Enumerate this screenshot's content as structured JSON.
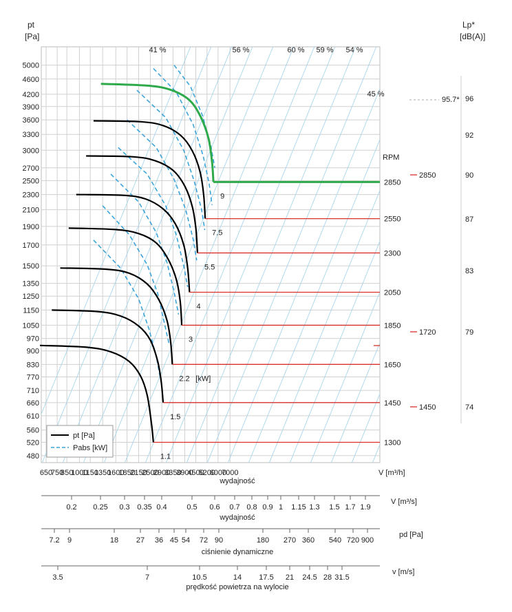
{
  "chart_data": {
    "type": "line",
    "y_axis": {
      "title_line1": "pt",
      "title_line2": "[Pa]",
      "ticks": [
        480,
        520,
        560,
        610,
        660,
        710,
        770,
        830,
        900,
        970,
        1050,
        1150,
        1250,
        1350,
        1500,
        1700,
        1900,
        2100,
        2300,
        2500,
        2700,
        3000,
        3300,
        3600,
        3900,
        4200,
        4600,
        5000
      ]
    },
    "x_axis": {
      "unit_label": "V [m³/h]",
      "title": "wydajność",
      "ticks": [
        650,
        750,
        850,
        1000,
        1150,
        1350,
        1600,
        1850,
        2150,
        2500,
        2900,
        3350,
        3900,
        4500,
        5200,
        6000,
        7000
      ]
    },
    "flow_axis": {
      "unit_label": "V  [m³/s]",
      "title": "wydajność",
      "ticks": [
        "0.2",
        "0.25",
        "0.3",
        "0.35",
        "0.4",
        "0.5",
        "0.6",
        "0.7",
        "0.8",
        "0.9",
        "1",
        "1.15",
        "1.3",
        "1.5",
        "1.7",
        "1.9"
      ]
    },
    "pd_axis": {
      "unit_label": "pd  [Pa]",
      "title": "ciśnienie dynamiczne",
      "ticks": [
        "7.2",
        "9",
        "18",
        "27",
        "36",
        "45",
        "54",
        "72",
        "90",
        "180",
        "270",
        "360",
        "540",
        "720",
        "900"
      ]
    },
    "v_axis": {
      "unit_label": "v  [m/s]",
      "title": "prędkość powietrza na wylocie",
      "ticks": [
        "3.5",
        "7",
        "10.5",
        "14",
        "17.5",
        "21",
        "24.5",
        "28",
        "31.5"
      ]
    },
    "lp_axis": {
      "title_line1": "Lp*",
      "title_line2": "[dB(A)]",
      "ticks": [
        74,
        79,
        83,
        87,
        90,
        92,
        96
      ]
    },
    "rpm_label": "RPM",
    "efficiency_labels": [
      "41 %",
      "56 %",
      "60 %",
      "59 %",
      "54 %",
      "45 %"
    ],
    "series": [
      {
        "rpm": "1300",
        "power": "1.1",
        "highlight": false,
        "points": [
          [
            600,
            930
          ],
          [
            1100,
            920
          ],
          [
            1500,
            895
          ],
          [
            1900,
            845
          ],
          [
            2200,
            775
          ],
          [
            2400,
            690
          ],
          [
            2540,
            580
          ],
          [
            2600,
            520
          ]
        ]
      },
      {
        "rpm": "1450",
        "power": "1.5",
        "highlight": false,
        "points": [
          [
            700,
            1150
          ],
          [
            1250,
            1140
          ],
          [
            1700,
            1110
          ],
          [
            2150,
            1045
          ],
          [
            2500,
            960
          ],
          [
            2750,
            845
          ],
          [
            2880,
            745
          ],
          [
            2950,
            660
          ]
        ]
      },
      {
        "rpm": "1650",
        "power": "2.2",
        "highlight": false,
        "points": [
          [
            780,
            1480
          ],
          [
            1400,
            1470
          ],
          [
            1900,
            1435
          ],
          [
            2400,
            1345
          ],
          [
            2800,
            1220
          ],
          [
            3100,
            1080
          ],
          [
            3250,
            950
          ],
          [
            3320,
            830
          ]
        ]
      },
      {
        "rpm": "1850",
        "power": "3",
        "highlight": false,
        "points": [
          [
            870,
            1880
          ],
          [
            1580,
            1865
          ],
          [
            2150,
            1820
          ],
          [
            2700,
            1720
          ],
          [
            3150,
            1560
          ],
          [
            3500,
            1380
          ],
          [
            3680,
            1210
          ],
          [
            3750,
            1050
          ]
        ]
      },
      {
        "rpm": "2050",
        "power": "4",
        "highlight": false,
        "points": [
          [
            960,
            2300
          ],
          [
            1750,
            2290
          ],
          [
            2350,
            2240
          ],
          [
            2950,
            2110
          ],
          [
            3450,
            1930
          ],
          [
            3850,
            1700
          ],
          [
            4050,
            1480
          ],
          [
            4150,
            1280
          ]
        ]
      },
      {
        "rpm": "2300",
        "power": "5.5",
        "highlight": false,
        "points": [
          [
            1090,
            2900
          ],
          [
            1980,
            2885
          ],
          [
            2650,
            2820
          ],
          [
            3350,
            2660
          ],
          [
            3900,
            2420
          ],
          [
            4300,
            2140
          ],
          [
            4500,
            1880
          ],
          [
            4600,
            1620
          ]
        ]
      },
      {
        "rpm": "2550",
        "power": "7.5",
        "highlight": false,
        "points": [
          [
            1200,
            3580
          ],
          [
            2200,
            3560
          ],
          [
            2950,
            3480
          ],
          [
            3700,
            3280
          ],
          [
            4300,
            2990
          ],
          [
            4750,
            2640
          ],
          [
            4980,
            2300
          ],
          [
            5080,
            1990
          ]
        ]
      },
      {
        "rpm": "2850",
        "power": "9",
        "highlight": true,
        "points": [
          [
            1320,
            4470
          ],
          [
            2450,
            4420
          ],
          [
            3300,
            4300
          ],
          [
            4150,
            4050
          ],
          [
            4800,
            3660
          ],
          [
            5300,
            3220
          ],
          [
            5550,
            2800
          ],
          [
            5650,
            2480
          ]
        ]
      }
    ],
    "pabs_curves": [
      [
        [
          1200,
          1750
        ],
        [
          1700,
          1480
        ],
        [
          2150,
          1230
        ],
        [
          2450,
          1030
        ],
        [
          2700,
          870
        ],
        [
          2850,
          760
        ]
      ],
      [
        [
          1350,
          2150
        ],
        [
          1900,
          1810
        ],
        [
          2400,
          1510
        ],
        [
          2750,
          1270
        ],
        [
          3000,
          1060
        ],
        [
          3200,
          930
        ]
      ],
      [
        [
          1500,
          2600
        ],
        [
          2150,
          2200
        ],
        [
          2700,
          1830
        ],
        [
          3100,
          1530
        ],
        [
          3400,
          1280
        ],
        [
          3600,
          1120
        ]
      ],
      [
        [
          1650,
          3050
        ],
        [
          2400,
          2600
        ],
        [
          3050,
          2150
        ],
        [
          3500,
          1800
        ],
        [
          3850,
          1500
        ],
        [
          4050,
          1320
        ]
      ],
      [
        [
          1850,
          3600
        ],
        [
          2700,
          3050
        ],
        [
          3400,
          2520
        ],
        [
          3950,
          2100
        ],
        [
          4350,
          1760
        ],
        [
          4550,
          1550
        ]
      ],
      [
        [
          2100,
          4300
        ],
        [
          3050,
          3650
        ],
        [
          3850,
          3000
        ],
        [
          4400,
          2500
        ],
        [
          4850,
          2100
        ],
        [
          5050,
          1860
        ]
      ],
      [
        [
          2600,
          4900
        ],
        [
          3500,
          4250
        ],
        [
          4350,
          3500
        ],
        [
          4950,
          2900
        ],
        [
          5350,
          2450
        ],
        [
          5550,
          2160
        ]
      ],
      [
        [
          3400,
          5000
        ],
        [
          4200,
          4400
        ],
        [
          4900,
          3700
        ],
        [
          5450,
          3100
        ],
        [
          5750,
          2700
        ]
      ]
    ],
    "spl_markers": [
      {
        "rpm": "2850",
        "lp": 90
      },
      {
        "rpm": "1720",
        "lp": 79
      },
      {
        "rpm": "1450",
        "lp": 74
      }
    ],
    "spl_peak_label": "95.7*",
    "legend": {
      "pt": "pt [Pa]",
      "pabs": "Pabs [kW]"
    }
  }
}
